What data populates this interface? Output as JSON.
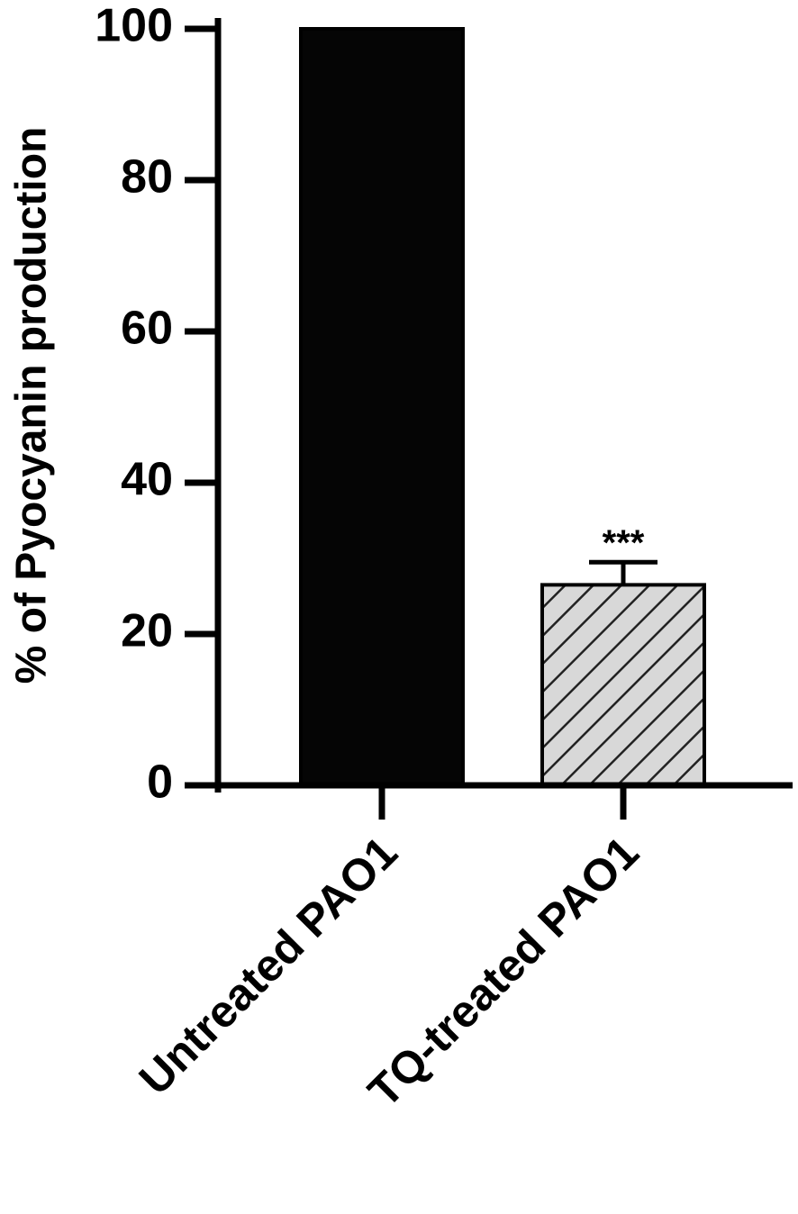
{
  "chart_data": {
    "type": "bar",
    "y_label": "% of Pyocyanin production",
    "categories": [
      "Untreated PAO1",
      "TQ-treated PAO1"
    ],
    "values": [
      100,
      26.5
    ],
    "errors": [
      null,
      3
    ],
    "colors": [
      "#050505",
      "#d8d8d8"
    ],
    "hatch": [
      false,
      true
    ],
    "annotations": [
      null,
      "***"
    ],
    "ylim": [
      0,
      100
    ],
    "yticks": [
      0,
      20,
      40,
      60,
      80,
      100
    ]
  }
}
